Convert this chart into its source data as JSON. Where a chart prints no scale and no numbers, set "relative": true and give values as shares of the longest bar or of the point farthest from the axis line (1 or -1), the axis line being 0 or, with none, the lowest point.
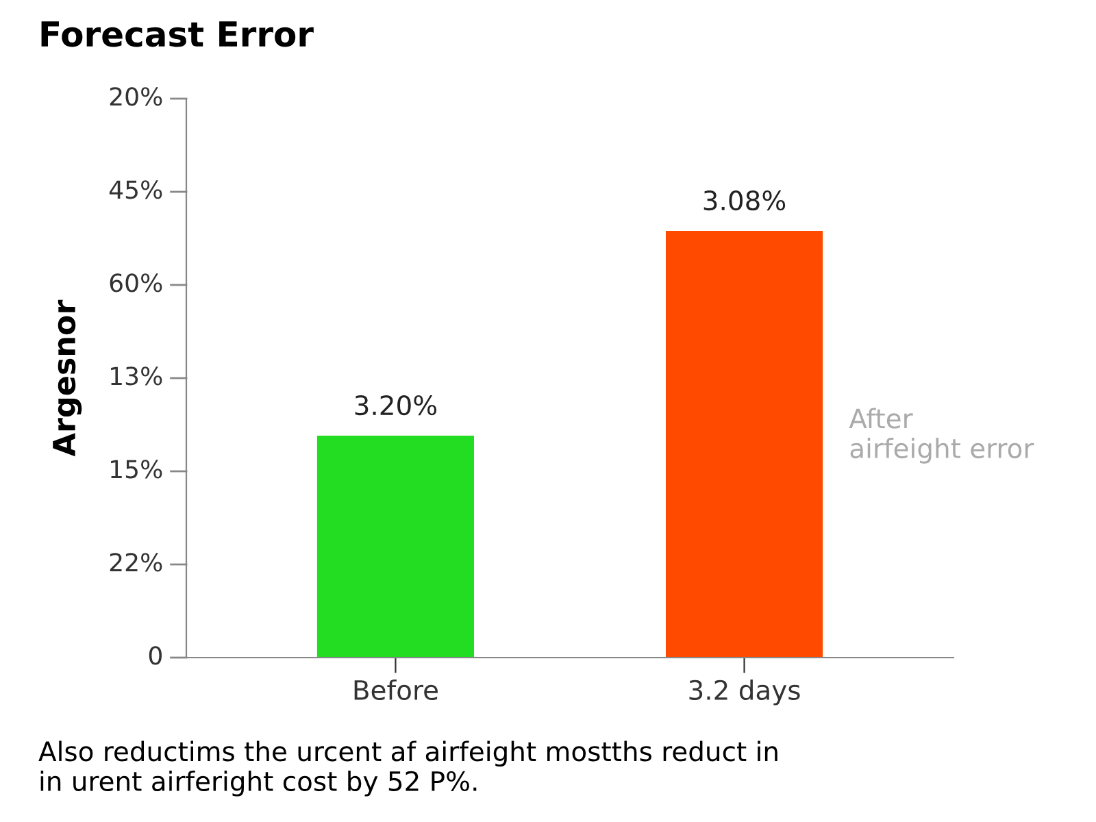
{
  "chart_data": {
    "type": "bar",
    "title": "Forecast Error",
    "ylabel": "Argesnor",
    "relative": true,
    "categories": [
      "Before",
      "3.2 days"
    ],
    "values": [
      0.52,
      1
    ],
    "colors": [
      "#22dd22",
      "#ff4a00"
    ],
    "annotations": [
      {
        "text": "3.20%",
        "x": "Before",
        "y": 0.52
      },
      {
        "text": "3.08%",
        "x": "3.2 days",
        "y": 1
      },
      "0",
      "22%",
      "15%",
      "13%",
      "60%",
      "45%",
      "20%",
      "After\nairfeight error",
      "Also reductims the urcent af airfeight mostths reduct in\nin urent airferight cost by 52 P%."
    ]
  }
}
